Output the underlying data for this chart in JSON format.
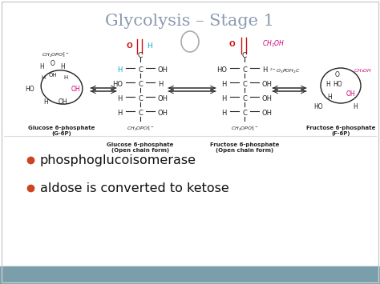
{
  "title": "Glycolysis – Stage 1",
  "title_color": "#8a9ab0",
  "title_fontsize": 15,
  "background_color": "#ffffff",
  "bottom_bar_color": "#7a9faa",
  "bullet_color": "#cc4422",
  "bullet_text_color": "#111111",
  "bullet_fontsize": 11.5,
  "bullets": [
    "phosphoglucoisomerase",
    "aldose is converted to ketose"
  ],
  "label1": "Glucose 6-phosphate\n(G-6P)",
  "label2": "Glucose 6-phosphate\n(Open chain form)",
  "label3": "Fructose 6-phosphate\n(Open chain form)",
  "label4": "Fructose 6-phosphate\n(F-6P)",
  "label_fontsize": 5.0,
  "divider_color": "#dddddd",
  "cyan": "#00aacc",
  "magenta": "#cc0077",
  "red": "#cc1111",
  "dark": "#222222"
}
